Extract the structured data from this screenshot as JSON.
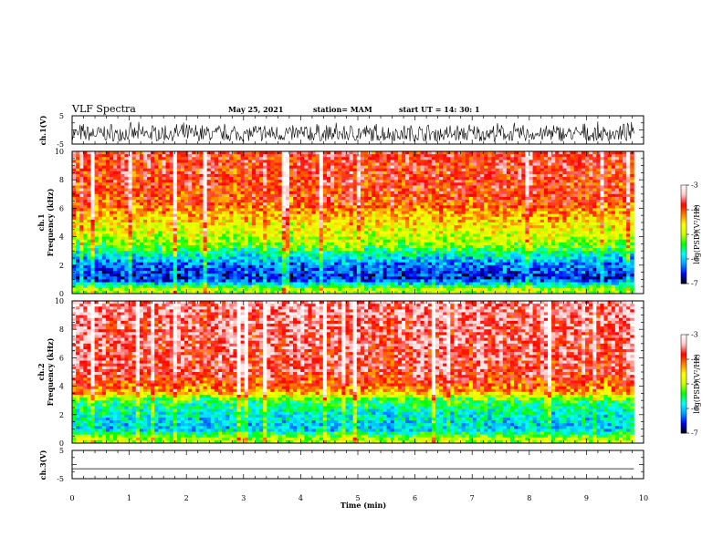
{
  "header": {
    "title": "VLF Spectra",
    "date": "May 25, 2021",
    "station": "station= MAM",
    "start": "start  UT  =    14: 30: 1"
  },
  "colors": {
    "scale": [
      "#000000",
      "#0000ff",
      "#00a0ff",
      "#00ffff",
      "#00ff00",
      "#c8ff00",
      "#ffff00",
      "#ff8000",
      "#ff0000",
      "#ffc8c8",
      "#ffffff"
    ]
  },
  "chart_data": [
    {
      "type": "line",
      "panel": "ch1-voltage",
      "ylabel": "ch.1(V)",
      "ylim": [
        -5,
        5
      ],
      "yticks": [
        "5",
        "-5"
      ],
      "xlim": [
        0,
        10
      ],
      "x_end_data": 9.83,
      "description_values": {
        "baseline": -0.5,
        "typical_range": [
          -4,
          3
        ]
      }
    },
    {
      "type": "heatmap",
      "panel": "ch1-spectrogram",
      "ylabel": "ch.1\nFrequency  (kHz)",
      "ylabel_lines": [
        "ch.1",
        "Frequency  (kHz)"
      ],
      "yticks": [
        "0",
        "2",
        "4",
        "6",
        "8",
        "10"
      ],
      "ylim": [
        0,
        10
      ],
      "xlim": [
        0,
        10
      ],
      "x_end_data": 9.83,
      "colorbar": {
        "label": "log(PSD)(V²/Hz)",
        "ticks": [
          "-3",
          "-4",
          "-5",
          "-6",
          "-7"
        ],
        "range": [
          -7,
          -3
        ]
      },
      "profile_kHz_logPSD": [
        [
          0.3,
          -5.0
        ],
        [
          1.0,
          -6.6
        ],
        [
          2.0,
          -6.3
        ],
        [
          3.0,
          -5.6
        ],
        [
          3.5,
          -5.1
        ],
        [
          5.0,
          -4.6
        ],
        [
          6.5,
          -4.0
        ],
        [
          8.0,
          -3.9
        ],
        [
          10.0,
          -3.8
        ]
      ]
    },
    {
      "type": "heatmap",
      "panel": "ch2-spectrogram",
      "ylabel": "ch.2\nFrequency  (kHz)",
      "ylabel_lines": [
        "ch.2",
        "Frequency  (kHz)"
      ],
      "yticks": [
        "0",
        "2",
        "4",
        "6",
        "8",
        "10"
      ],
      "ylim": [
        0,
        10
      ],
      "xlim": [
        0,
        10
      ],
      "x_end_data": 9.83,
      "colorbar": {
        "label": "log(PSD)(V²/Hz)",
        "ticks": [
          "-3",
          "-4",
          "-5",
          "-6",
          "-7"
        ],
        "range": [
          -7,
          -3
        ]
      },
      "profile_kHz_logPSD": [
        [
          0.3,
          -5.0
        ],
        [
          1.0,
          -6.0
        ],
        [
          2.0,
          -5.8
        ],
        [
          3.0,
          -5.4
        ],
        [
          3.6,
          -4.3
        ],
        [
          5.0,
          -3.7
        ],
        [
          8.0,
          -3.6
        ],
        [
          10.0,
          -3.5
        ]
      ]
    },
    {
      "type": "line",
      "panel": "ch3-voltage",
      "ylabel": "ch.3(V)",
      "ylim": [
        -5,
        5
      ],
      "yticks": [
        "5",
        "-5"
      ],
      "xlim": [
        0,
        10
      ],
      "x_end_data": 9.83,
      "constant_value": -1.5
    }
  ],
  "xaxis": {
    "label": "Time  (min)",
    "ticks": [
      "0",
      "1",
      "2",
      "3",
      "4",
      "5",
      "6",
      "7",
      "8",
      "9",
      "10"
    ]
  }
}
